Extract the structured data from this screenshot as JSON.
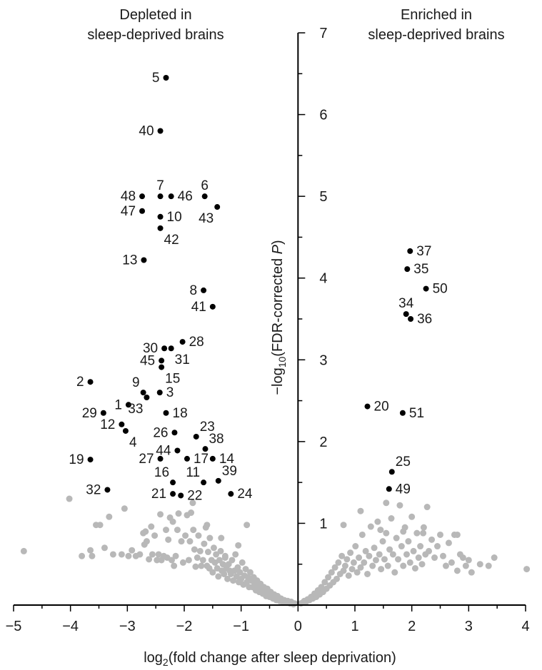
{
  "chart_data": {
    "type": "scatter",
    "title": "",
    "xlabel_main": "log",
    "xlabel_sub": "2",
    "xlabel_rest": "(fold change after sleep deprivation)",
    "ylabel_pre": "−log",
    "ylabel_sub": "10",
    "ylabel_mid": "(FDR-corrected ",
    "ylabel_italic": "P",
    "ylabel_post": ")",
    "xlim": [
      -5,
      4
    ],
    "ylim": [
      0,
      7
    ],
    "x_ticks": [
      -5,
      -4,
      -3,
      -2,
      -1,
      0,
      1,
      2,
      3,
      4
    ],
    "x_tick_labels": [
      "−5",
      "−4",
      "−3",
      "−2",
      "−1",
      "0",
      "1",
      "2",
      "3",
      "4"
    ],
    "y_ticks": [
      1,
      2,
      3,
      4,
      5,
      6,
      7
    ],
    "y_tick_labels": [
      "1",
      "2",
      "3",
      "4",
      "5",
      "6",
      "7"
    ],
    "annotations": {
      "left_line1": "Depleted in",
      "left_line2": "sleep-deprived brains",
      "right_line1": "Enriched in",
      "right_line2": "sleep-deprived brains"
    },
    "colors": {
      "significant": "#000000",
      "nonsignificant": "#b8b8b8"
    },
    "significant_points": [
      {
        "label": "5",
        "x": -2.32,
        "y": 6.45,
        "side": "left"
      },
      {
        "label": "40",
        "x": -2.42,
        "y": 5.8,
        "side": "left"
      },
      {
        "label": "7",
        "x": -2.42,
        "y": 5.0,
        "side": "above"
      },
      {
        "label": "46",
        "x": -2.23,
        "y": 5.0,
        "side": "right"
      },
      {
        "label": "6",
        "x": -1.64,
        "y": 5.0,
        "side": "above"
      },
      {
        "label": "48",
        "x": -2.74,
        "y": 5.0,
        "side": "left"
      },
      {
        "label": "43",
        "x": -1.42,
        "y": 4.87,
        "side": "below-left"
      },
      {
        "label": "47",
        "x": -2.74,
        "y": 4.82,
        "side": "left"
      },
      {
        "label": "10",
        "x": -2.42,
        "y": 4.75,
        "side": "right"
      },
      {
        "label": "42",
        "x": -2.42,
        "y": 4.61,
        "side": "below-right"
      },
      {
        "label": "13",
        "x": -2.71,
        "y": 4.22,
        "side": "left"
      },
      {
        "label": "8",
        "x": -1.66,
        "y": 3.85,
        "side": "left"
      },
      {
        "label": "41",
        "x": -1.5,
        "y": 3.65,
        "side": "left"
      },
      {
        "label": "28",
        "x": -2.03,
        "y": 3.22,
        "side": "right"
      },
      {
        "label": "30",
        "x": -2.35,
        "y": 3.14,
        "side": "left"
      },
      {
        "label": "31",
        "x": -2.23,
        "y": 3.14,
        "side": "below-right"
      },
      {
        "label": "45",
        "x": -2.4,
        "y": 2.99,
        "side": "left"
      },
      {
        "label": "15",
        "x": -2.4,
        "y": 2.91,
        "side": "below-right"
      },
      {
        "label": "2",
        "x": -3.65,
        "y": 2.73,
        "side": "left"
      },
      {
        "label": "9",
        "x": -2.72,
        "y": 2.6,
        "side": "above-left"
      },
      {
        "label": "3",
        "x": -2.43,
        "y": 2.6,
        "side": "right"
      },
      {
        "label": "1",
        "x": -2.98,
        "y": 2.45,
        "side": "left"
      },
      {
        "label": "33",
        "x": -2.66,
        "y": 2.54,
        "side": "below-left"
      },
      {
        "label": "18",
        "x": -2.32,
        "y": 2.35,
        "side": "right"
      },
      {
        "label": "29",
        "x": -3.42,
        "y": 2.35,
        "side": "left"
      },
      {
        "label": "12",
        "x": -3.1,
        "y": 2.21,
        "side": "left"
      },
      {
        "label": "4",
        "x": -3.03,
        "y": 2.13,
        "side": "below-right"
      },
      {
        "label": "26",
        "x": -2.17,
        "y": 2.11,
        "side": "left"
      },
      {
        "label": "23",
        "x": -1.79,
        "y": 2.06,
        "side": "above-right"
      },
      {
        "label": "44",
        "x": -2.12,
        "y": 1.89,
        "side": "left"
      },
      {
        "label": "38",
        "x": -1.63,
        "y": 1.91,
        "side": "above-right"
      },
      {
        "label": "19",
        "x": -3.65,
        "y": 1.78,
        "side": "left"
      },
      {
        "label": "27",
        "x": -2.42,
        "y": 1.79,
        "side": "left"
      },
      {
        "label": "17",
        "x": -1.95,
        "y": 1.79,
        "side": "right"
      },
      {
        "label": "14",
        "x": -1.5,
        "y": 1.79,
        "side": "right"
      },
      {
        "label": "16",
        "x": -2.2,
        "y": 1.5,
        "side": "above-left"
      },
      {
        "label": "11",
        "x": -1.66,
        "y": 1.5,
        "side": "above-left"
      },
      {
        "label": "39",
        "x": -1.4,
        "y": 1.52,
        "side": "above-right"
      },
      {
        "label": "32",
        "x": -3.35,
        "y": 1.41,
        "side": "left"
      },
      {
        "label": "21",
        "x": -2.2,
        "y": 1.36,
        "side": "left"
      },
      {
        "label": "22",
        "x": -2.06,
        "y": 1.34,
        "side": "right"
      },
      {
        "label": "24",
        "x": -1.18,
        "y": 1.36,
        "side": "right"
      },
      {
        "label": "37",
        "x": 1.97,
        "y": 4.33,
        "side": "right"
      },
      {
        "label": "35",
        "x": 1.92,
        "y": 4.11,
        "side": "right"
      },
      {
        "label": "50",
        "x": 2.25,
        "y": 3.87,
        "side": "right"
      },
      {
        "label": "34",
        "x": 1.9,
        "y": 3.56,
        "side": "above"
      },
      {
        "label": "36",
        "x": 1.98,
        "y": 3.5,
        "side": "right"
      },
      {
        "label": "20",
        "x": 1.22,
        "y": 2.43,
        "side": "right"
      },
      {
        "label": "51",
        "x": 1.84,
        "y": 2.35,
        "side": "right"
      },
      {
        "label": "25",
        "x": 1.65,
        "y": 1.63,
        "side": "above-right"
      },
      {
        "label": "49",
        "x": 1.6,
        "y": 1.42,
        "side": "right"
      }
    ],
    "nonsignificant_points": [
      [
        -4.82,
        0.66
      ],
      [
        -4.02,
        1.3
      ],
      [
        -3.8,
        0.6
      ],
      [
        -3.65,
        0.67
      ],
      [
        -3.62,
        0.6
      ],
      [
        -3.55,
        0.98
      ],
      [
        -3.48,
        0.98
      ],
      [
        -3.4,
        0.7
      ],
      [
        -3.32,
        1.08
      ],
      [
        -3.25,
        0.62
      ],
      [
        -3.1,
        0.62
      ],
      [
        -3.05,
        1.18
      ],
      [
        -2.98,
        0.6
      ],
      [
        -2.92,
        0.67
      ],
      [
        -2.85,
        0.6
      ],
      [
        -2.78,
        0.62
      ],
      [
        -2.72,
        0.88
      ],
      [
        -2.7,
        0.74
      ],
      [
        -2.66,
        0.78
      ],
      [
        -2.62,
        0.56
      ],
      [
        -2.58,
        0.96
      ],
      [
        -2.56,
        0.62
      ],
      [
        -2.52,
        0.85
      ],
      [
        -2.48,
        0.55
      ],
      [
        -2.45,
        0.62
      ],
      [
        -2.42,
        1.11
      ],
      [
        -2.4,
        0.55
      ],
      [
        -2.36,
        0.6
      ],
      [
        -2.32,
        0.92
      ],
      [
        -2.3,
        0.58
      ],
      [
        -2.28,
        0.8
      ],
      [
        -2.25,
        1.07
      ],
      [
        -2.22,
        0.55
      ],
      [
        -2.2,
        1.02
      ],
      [
        -2.18,
        0.48
      ],
      [
        -2.15,
        0.6
      ],
      [
        -2.12,
        0.92
      ],
      [
        -2.1,
        1.12
      ],
      [
        -2.05,
        0.78
      ],
      [
        -2.02,
        0.52
      ],
      [
        -1.98,
        0.85
      ],
      [
        -1.95,
        1.1
      ],
      [
        -1.92,
        0.55
      ],
      [
        -1.9,
        0.78
      ],
      [
        -1.88,
        1.13
      ],
      [
        -1.84,
        0.92
      ],
      [
        -1.82,
        0.68
      ],
      [
        -1.8,
        0.47
      ],
      [
        -1.77,
        0.58
      ],
      [
        -1.75,
        0.85
      ],
      [
        -1.72,
        0.66
      ],
      [
        -1.7,
        0.48
      ],
      [
        -1.67,
        0.55
      ],
      [
        -1.65,
        0.75
      ],
      [
        -1.62,
        0.95
      ],
      [
        -1.6,
        0.48
      ],
      [
        -1.58,
        0.65
      ],
      [
        -1.56,
        0.45
      ],
      [
        -1.55,
        0.82
      ],
      [
        -1.52,
        0.55
      ],
      [
        -1.5,
        0.4
      ],
      [
        -1.48,
        0.7
      ],
      [
        -1.46,
        0.52
      ],
      [
        -1.44,
        0.62
      ],
      [
        -1.42,
        0.45
      ],
      [
        -1.4,
        0.35
      ],
      [
        -1.38,
        0.55
      ],
      [
        -1.36,
        0.66
      ],
      [
        -1.34,
        0.42
      ],
      [
        -1.32,
        0.5
      ],
      [
        -1.3,
        0.38
      ],
      [
        -1.28,
        0.6
      ],
      [
        -1.26,
        0.45
      ],
      [
        -1.24,
        0.32
      ],
      [
        -1.22,
        0.5
      ],
      [
        -1.2,
        0.42
      ],
      [
        -1.18,
        0.38
      ],
      [
        -1.16,
        0.55
      ],
      [
        -1.14,
        0.3
      ],
      [
        -1.12,
        0.42
      ],
      [
        -1.1,
        0.62
      ],
      [
        -1.08,
        0.35
      ],
      [
        -1.06,
        0.46
      ],
      [
        -1.04,
        0.28
      ],
      [
        -1.02,
        0.4
      ],
      [
        -1.0,
        0.32
      ],
      [
        -0.98,
        0.52
      ],
      [
        -0.96,
        0.25
      ],
      [
        -0.94,
        0.36
      ],
      [
        -0.92,
        0.44
      ],
      [
        -0.9,
        0.28
      ],
      [
        -0.88,
        0.34
      ],
      [
        -0.86,
        0.22
      ],
      [
        -0.84,
        0.4
      ],
      [
        -0.82,
        0.3
      ],
      [
        -0.8,
        0.22
      ],
      [
        -0.78,
        0.34
      ],
      [
        -0.76,
        0.26
      ],
      [
        -0.74,
        0.18
      ],
      [
        -0.72,
        0.3
      ],
      [
        -0.7,
        0.22
      ],
      [
        -0.68,
        0.16
      ],
      [
        -0.66,
        0.26
      ],
      [
        -0.64,
        0.2
      ],
      [
        -0.62,
        0.14
      ],
      [
        -0.6,
        0.22
      ],
      [
        -0.58,
        0.16
      ],
      [
        -0.56,
        0.11
      ],
      [
        -0.54,
        0.2
      ],
      [
        -0.52,
        0.14
      ],
      [
        -0.5,
        0.1
      ],
      [
        -0.48,
        0.16
      ],
      [
        -0.46,
        0.12
      ],
      [
        -0.44,
        0.08
      ],
      [
        -0.42,
        0.13
      ],
      [
        -0.4,
        0.09
      ],
      [
        -0.38,
        0.06
      ],
      [
        -0.36,
        0.11
      ],
      [
        -0.34,
        0.07
      ],
      [
        -0.32,
        0.05
      ],
      [
        -0.3,
        0.08
      ],
      [
        -0.28,
        0.05
      ],
      [
        -0.26,
        0.03
      ],
      [
        -0.24,
        0.06
      ],
      [
        -0.22,
        0.04
      ],
      [
        -0.2,
        0.03
      ],
      [
        -0.18,
        0.05
      ],
      [
        -0.16,
        0.03
      ],
      [
        -0.14,
        0.02
      ],
      [
        -0.12,
        0.04
      ],
      [
        -0.1,
        0.02
      ],
      [
        -0.08,
        0.01
      ],
      [
        -0.06,
        0.02
      ],
      [
        -1.85,
        1.25
      ],
      [
        -1.6,
        0.98
      ],
      [
        -1.35,
        0.82
      ],
      [
        -1.05,
        0.73
      ],
      [
        -0.9,
        0.98
      ],
      [
        -2.68,
        0.9
      ],
      [
        -1.28,
        0.58
      ],
      [
        0.05,
        0.02
      ],
      [
        0.08,
        0.03
      ],
      [
        0.11,
        0.05
      ],
      [
        0.14,
        0.04
      ],
      [
        0.17,
        0.07
      ],
      [
        0.2,
        0.06
      ],
      [
        0.23,
        0.1
      ],
      [
        0.26,
        0.08
      ],
      [
        0.29,
        0.14
      ],
      [
        0.32,
        0.1
      ],
      [
        0.35,
        0.18
      ],
      [
        0.38,
        0.13
      ],
      [
        0.41,
        0.22
      ],
      [
        0.44,
        0.16
      ],
      [
        0.47,
        0.28
      ],
      [
        0.5,
        0.2
      ],
      [
        0.53,
        0.34
      ],
      [
        0.56,
        0.24
      ],
      [
        0.59,
        0.4
      ],
      [
        0.62,
        0.28
      ],
      [
        0.65,
        0.46
      ],
      [
        0.68,
        0.32
      ],
      [
        0.71,
        0.52
      ],
      [
        0.74,
        0.38
      ],
      [
        0.77,
        0.6
      ],
      [
        0.8,
        0.42
      ],
      [
        0.83,
        0.48
      ],
      [
        0.86,
        0.56
      ],
      [
        0.89,
        0.36
      ],
      [
        0.92,
        0.64
      ],
      [
        0.95,
        0.44
      ],
      [
        0.98,
        0.52
      ],
      [
        1.01,
        0.72
      ],
      [
        1.04,
        0.4
      ],
      [
        1.07,
        0.58
      ],
      [
        1.1,
        0.46
      ],
      [
        1.13,
        0.86
      ],
      [
        1.16,
        0.52
      ],
      [
        1.19,
        0.66
      ],
      [
        1.22,
        0.38
      ],
      [
        1.25,
        0.6
      ],
      [
        1.28,
        0.96
      ],
      [
        1.31,
        0.48
      ],
      [
        1.34,
        0.7
      ],
      [
        1.37,
        0.55
      ],
      [
        1.4,
        1.02
      ],
      [
        1.43,
        0.62
      ],
      [
        1.46,
        0.44
      ],
      [
        1.49,
        0.78
      ],
      [
        1.52,
        0.56
      ],
      [
        1.55,
        0.88
      ],
      [
        1.58,
        0.48
      ],
      [
        1.61,
        0.68
      ],
      [
        1.64,
        1.06
      ],
      [
        1.67,
        0.62
      ],
      [
        1.7,
        0.4
      ],
      [
        1.73,
        0.82
      ],
      [
        1.76,
        0.56
      ],
      [
        1.79,
        1.22
      ],
      [
        1.82,
        0.72
      ],
      [
        1.85,
        0.48
      ],
      [
        1.88,
        0.95
      ],
      [
        1.91,
        0.62
      ],
      [
        1.94,
        0.78
      ],
      [
        1.97,
        0.52
      ],
      [
        2.0,
        1.08
      ],
      [
        2.03,
        0.66
      ],
      [
        2.06,
        0.45
      ],
      [
        2.09,
        0.88
      ],
      [
        2.12,
        0.58
      ],
      [
        2.15,
        0.72
      ],
      [
        2.18,
        0.5
      ],
      [
        2.21,
        0.95
      ],
      [
        2.24,
        0.62
      ],
      [
        2.27,
        1.2
      ],
      [
        2.3,
        0.66
      ],
      [
        2.35,
        0.8
      ],
      [
        2.4,
        0.58
      ],
      [
        2.45,
        0.72
      ],
      [
        2.5,
        0.86
      ],
      [
        2.55,
        0.6
      ],
      [
        2.6,
        0.48
      ],
      [
        2.65,
        0.76
      ],
      [
        2.7,
        0.52
      ],
      [
        2.75,
        0.86
      ],
      [
        2.8,
        0.42
      ],
      [
        2.85,
        0.62
      ],
      [
        2.9,
        0.58
      ],
      [
        2.95,
        0.48
      ],
      [
        3.0,
        0.55
      ],
      [
        3.05,
        0.4
      ],
      [
        3.2,
        0.5
      ],
      [
        3.35,
        0.48
      ],
      [
        3.45,
        0.58
      ],
      [
        4.02,
        0.44
      ],
      [
        0.8,
        0.98
      ],
      [
        1.1,
        1.15
      ],
      [
        1.55,
        1.25
      ],
      [
        1.85,
        0.9
      ],
      [
        2.2,
        0.88
      ],
      [
        1.45,
        0.92
      ],
      [
        2.8,
        0.86
      ]
    ]
  }
}
